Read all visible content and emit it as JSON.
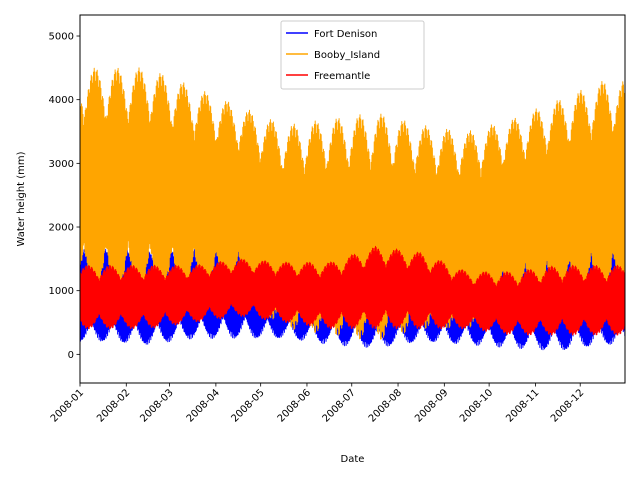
{
  "chart_data": {
    "type": "line",
    "xlabel": "Date",
    "ylabel": "Water height (mm)",
    "xlim": [
      "2008-01-01",
      "2008-12-31"
    ],
    "ylim": [
      -450,
      5330
    ],
    "yticks": [
      0,
      1000,
      2000,
      3000,
      4000,
      5000
    ],
    "xticks": [
      "2008-01",
      "2008-02",
      "2008-03",
      "2008-04",
      "2008-05",
      "2008-06",
      "2008-07",
      "2008-08",
      "2008-09",
      "2008-10",
      "2008-11",
      "2008-12"
    ],
    "legend_position": "upper-center",
    "grid": false,
    "series": [
      {
        "name": "Fort Denison",
        "color": "#0000ff",
        "envelope": {
          "months": [
            "2008-01",
            "2008-02",
            "2008-03",
            "2008-04",
            "2008-05",
            "2008-06",
            "2008-07",
            "2008-08",
            "2008-09",
            "2008-10",
            "2008-11",
            "2008-12"
          ],
          "min": [
            200,
            150,
            250,
            250,
            250,
            150,
            100,
            200,
            150,
            100,
            50,
            150
          ],
          "max": [
            1700,
            1650,
            1700,
            1800,
            1500,
            1700,
            1600,
            1500,
            1600,
            1700,
            1650,
            1700
          ]
        }
      },
      {
        "name": "Booby_Island",
        "color": "#ffa500",
        "envelope": {
          "months": [
            "2008-01",
            "2008-02",
            "2008-03",
            "2008-04",
            "2008-05",
            "2008-06",
            "2008-07",
            "2008-08",
            "2008-09",
            "2008-10",
            "2008-11",
            "2008-12"
          ],
          "min": [
            900,
            900,
            900,
            900,
            400,
            300,
            200,
            400,
            400,
            700,
            700,
            800
          ],
          "max": [
            4500,
            4500,
            4200,
            3900,
            3600,
            3700,
            3800,
            3600,
            3500,
            3700,
            4000,
            4300
          ]
        }
      },
      {
        "name": "Freemantle",
        "color": "#ff0000",
        "envelope": {
          "months": [
            "2008-01",
            "2008-02",
            "2008-03",
            "2008-04",
            "2008-05",
            "2008-06",
            "2008-07",
            "2008-08",
            "2008-09",
            "2008-10",
            "2008-11",
            "2008-12"
          ],
          "min": [
            400,
            400,
            500,
            600,
            500,
            400,
            400,
            400,
            400,
            300,
            300,
            300
          ],
          "max": [
            1400,
            1400,
            1400,
            1500,
            1450,
            1450,
            1700,
            1600,
            1300,
            1300,
            1400,
            1400
          ]
        }
      }
    ]
  }
}
